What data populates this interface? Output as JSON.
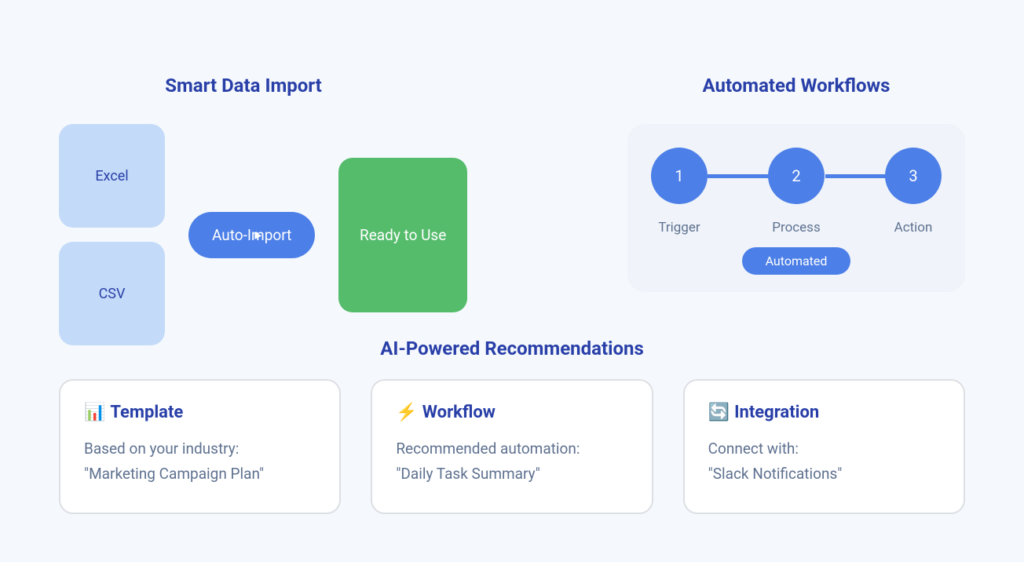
{
  "colors": {
    "background": "#f5f9fd",
    "heading": "#293fa8",
    "primary": "#4c7fe7",
    "fileBox": "#c3daf9",
    "success": "#55bc6c",
    "muted": "#5e7190",
    "cardBg": "#ffffff",
    "cardBorder": "#dcdfe3",
    "workflowBg": "#f0f4fa"
  },
  "smartImport": {
    "title": "Smart Data Import",
    "files": [
      "Excel",
      "CSV"
    ],
    "buttonLabel": "Auto-Import",
    "readyLabel": "Ready to Use"
  },
  "workflows": {
    "title": "Automated Workflows",
    "steps": [
      "1",
      "2",
      "3"
    ],
    "labels": [
      "Trigger",
      "Process",
      "Action"
    ],
    "badge": "Automated"
  },
  "ai": {
    "title": "AI-Powered Recommendations",
    "cards": [
      {
        "icon": "📊",
        "iconName": "chart-icon",
        "title": "Template",
        "line1": "Based on your industry:",
        "line2": "\"Marketing Campaign Plan\""
      },
      {
        "icon": "⚡",
        "iconName": "lightning-icon",
        "title": "Workflow",
        "line1": "Recommended automation:",
        "line2": "\"Daily Task Summary\""
      },
      {
        "icon": "🔄",
        "iconName": "sync-icon",
        "title": "Integration",
        "line1": "Connect with:",
        "line2": "\"Slack Notifications\""
      }
    ]
  }
}
